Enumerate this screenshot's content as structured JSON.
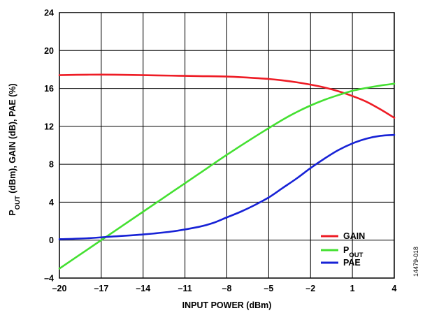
{
  "chart_data": {
    "type": "line",
    "xlabel": "INPUT POWER (dBm)",
    "ylabel": {
      "parts": [
        {
          "text": "P",
          "sub": false
        },
        {
          "text": "OUT",
          "sub": true
        },
        {
          "text": " (dBm), GAIN (dB), PAE (%)",
          "sub": false
        }
      ]
    },
    "xlim": [
      -20,
      4
    ],
    "ylim": [
      -4,
      24
    ],
    "x_ticks": [
      -20,
      -17,
      -14,
      -11,
      -8,
      -5,
      -2,
      1,
      4
    ],
    "x_tick_labels": [
      "–20",
      "–17",
      "–14",
      "–11",
      "–8",
      "–5",
      "–2",
      "1",
      "4"
    ],
    "y_ticks": [
      -4,
      0,
      4,
      8,
      12,
      16,
      20,
      24
    ],
    "y_tick_labels": [
      "–4",
      "0",
      "4",
      "8",
      "12",
      "16",
      "20",
      "24"
    ],
    "grid": true,
    "legend_position": "bottom-right",
    "figure_id": "14479-018",
    "series": [
      {
        "key": "gain",
        "name": "GAIN",
        "name_parts": [
          {
            "text": "GAIN",
            "sub": false
          }
        ],
        "color": "#ee1c25",
        "x": [
          -20,
          -18,
          -16,
          -14,
          -12,
          -10,
          -8,
          -6,
          -5,
          -4,
          -3,
          -2,
          -1,
          0,
          1,
          2,
          3,
          4
        ],
        "y": [
          17.4,
          17.45,
          17.45,
          17.4,
          17.35,
          17.3,
          17.25,
          17.1,
          17.0,
          16.85,
          16.65,
          16.4,
          16.1,
          15.7,
          15.2,
          14.6,
          13.8,
          12.9
        ]
      },
      {
        "key": "pout",
        "name": "POUT",
        "name_parts": [
          {
            "text": "P",
            "sub": false
          },
          {
            "text": "OUT",
            "sub": true
          }
        ],
        "color": "#44e031",
        "x": [
          -20,
          -18,
          -16,
          -14,
          -12,
          -10,
          -8,
          -6,
          -4,
          -3,
          -2,
          -1,
          0,
          1,
          2,
          3,
          4
        ],
        "y": [
          -3.0,
          -1.0,
          1.0,
          3.0,
          5.0,
          7.0,
          9.0,
          10.9,
          12.7,
          13.5,
          14.2,
          14.8,
          15.3,
          15.75,
          16.05,
          16.3,
          16.5
        ]
      },
      {
        "key": "pae",
        "name": "PAE",
        "name_parts": [
          {
            "text": "PAE",
            "sub": false
          }
        ],
        "color": "#1722d6",
        "x": [
          -20,
          -18,
          -16,
          -14,
          -12,
          -10,
          -9,
          -8,
          -7,
          -6,
          -5,
          -4,
          -3,
          -2,
          -1,
          0,
          1,
          2,
          3,
          4
        ],
        "y": [
          0.1,
          0.2,
          0.4,
          0.6,
          0.9,
          1.4,
          1.8,
          2.4,
          3.0,
          3.7,
          4.5,
          5.5,
          6.5,
          7.6,
          8.6,
          9.5,
          10.2,
          10.7,
          11.0,
          11.1
        ]
      }
    ]
  }
}
